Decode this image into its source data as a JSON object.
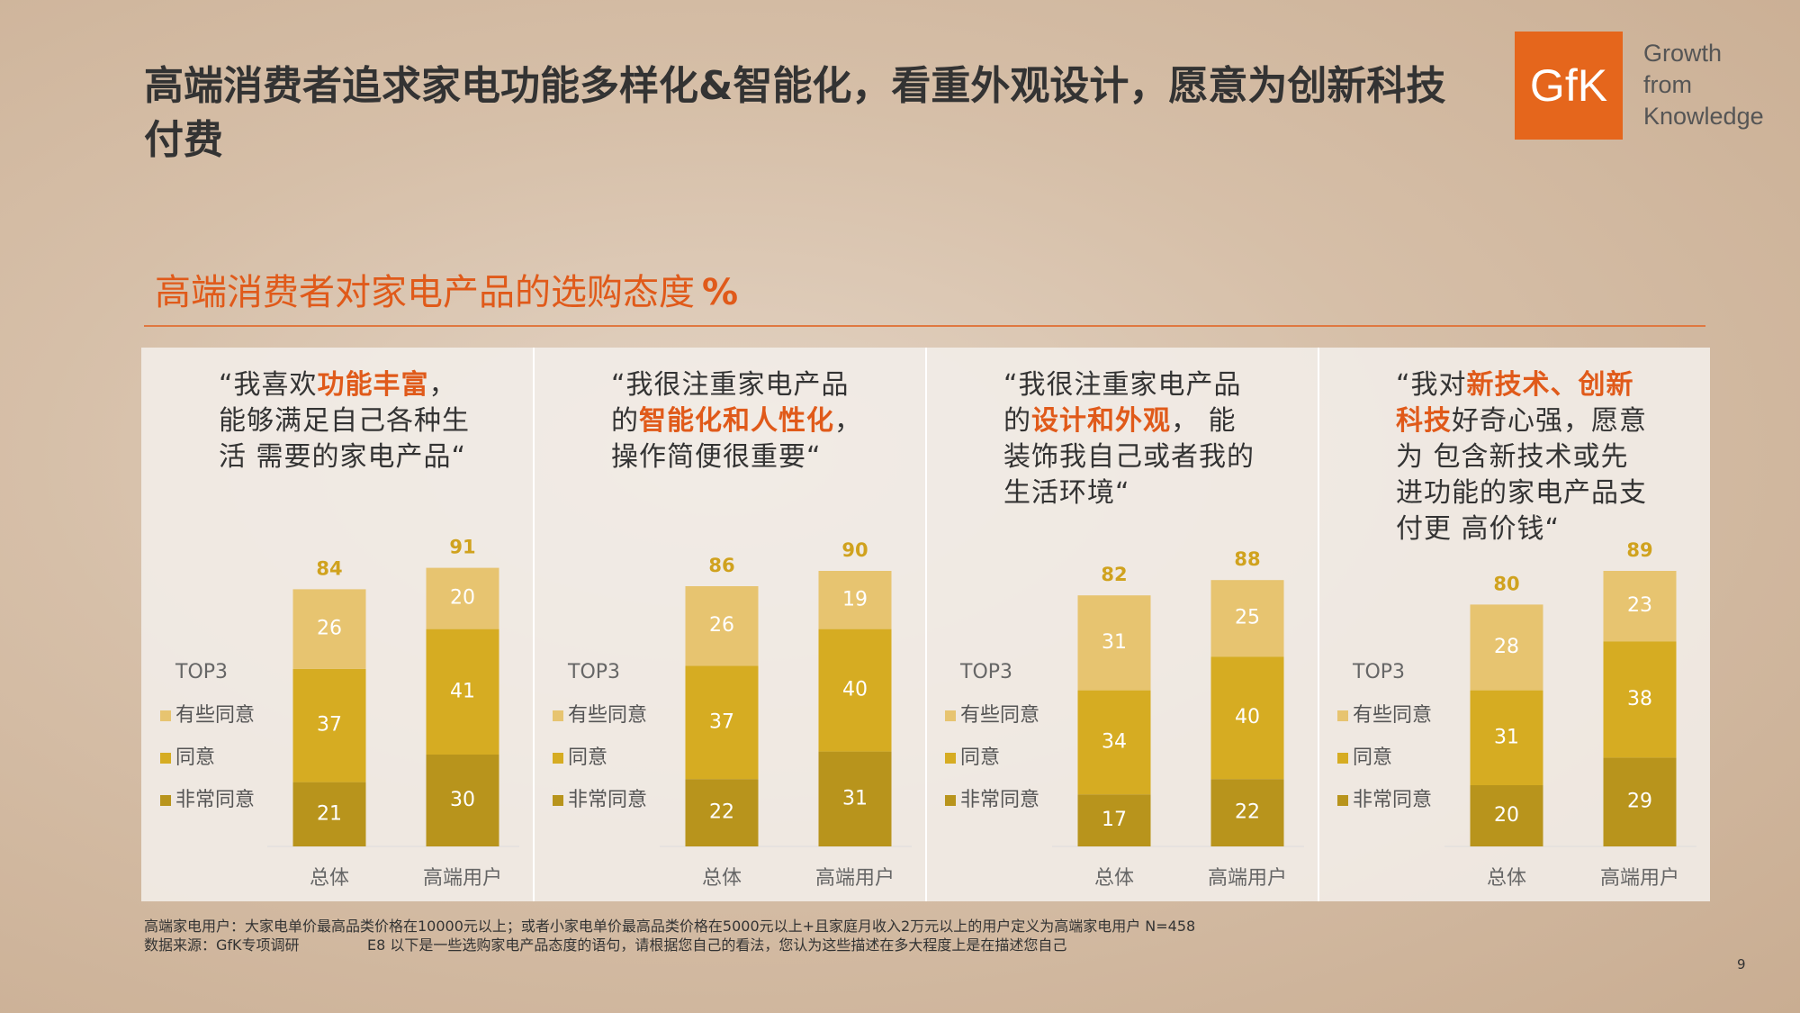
{
  "header": {
    "title": "高端消费者追求家电功能多样化&智能化，看重外观设计，愿意为创新科技付费",
    "logo": "GfK",
    "tagline": [
      "Growth",
      "from",
      "Knowledge"
    ],
    "subtitle": "高端消费者对家电产品的选购态度",
    "unit": "%"
  },
  "chart_data": [
    {
      "type": "stacked-bar",
      "quote": [
        {
          "text": "“我喜欢"
        },
        {
          "text": "功能丰富",
          "highlight": true
        },
        {
          "text": "，能够满足自己各种生活 需要的家电产品“"
        }
      ],
      "categories": [
        "总体",
        "高端用户"
      ],
      "ylim": [
        0,
        100
      ],
      "legend_title": "TOP3",
      "totals": [
        84,
        91
      ],
      "series": [
        {
          "name": "非常同意",
          "color": "#b8941c",
          "values": [
            21,
            30
          ]
        },
        {
          "name": "同意",
          "color": "#d6ac22",
          "values": [
            37,
            41
          ]
        },
        {
          "name": "有些同意",
          "color": "#e7c470",
          "values": [
            26,
            20
          ]
        }
      ]
    },
    {
      "type": "stacked-bar",
      "quote": [
        {
          "text": "“我很注重家电产品的"
        },
        {
          "text": "智能化和人性化",
          "highlight": true
        },
        {
          "text": "，操作简便很重要“"
        }
      ],
      "categories": [
        "总体",
        "高端用户"
      ],
      "ylim": [
        0,
        100
      ],
      "legend_title": "TOP3",
      "totals": [
        86,
        90
      ],
      "series": [
        {
          "name": "非常同意",
          "color": "#b8941c",
          "values": [
            22,
            31
          ]
        },
        {
          "name": "同意",
          "color": "#d6ac22",
          "values": [
            37,
            40
          ]
        },
        {
          "name": "有些同意",
          "color": "#e7c470",
          "values": [
            26,
            19
          ]
        }
      ]
    },
    {
      "type": "stacked-bar",
      "quote": [
        {
          "text": "“我很注重家电产品的"
        },
        {
          "text": "设计和外观",
          "highlight": true
        },
        {
          "text": "， 能装饰我自己或者我的生活环境“"
        }
      ],
      "categories": [
        "总体",
        "高端用户"
      ],
      "ylim": [
        0,
        100
      ],
      "legend_title": "TOP3",
      "totals": [
        82,
        88
      ],
      "series": [
        {
          "name": "非常同意",
          "color": "#b8941c",
          "values": [
            17,
            22
          ]
        },
        {
          "name": "同意",
          "color": "#d6ac22",
          "values": [
            34,
            40
          ]
        },
        {
          "name": "有些同意",
          "color": "#e7c470",
          "values": [
            31,
            25
          ]
        }
      ]
    },
    {
      "type": "stacked-bar",
      "quote": [
        {
          "text": "“我对"
        },
        {
          "text": "新技术、创新科技",
          "highlight": true
        },
        {
          "text": "好奇心强，愿意为 包含新技术或先进功能的家电产品支付更 高价钱“"
        }
      ],
      "categories": [
        "总体",
        "高端用户"
      ],
      "ylim": [
        0,
        100
      ],
      "legend_title": "TOP3",
      "totals": [
        80,
        89
      ],
      "series": [
        {
          "name": "非常同意",
          "color": "#b8941c",
          "values": [
            20,
            29
          ]
        },
        {
          "name": "同意",
          "color": "#d6ac22",
          "values": [
            31,
            38
          ]
        },
        {
          "name": "有些同意",
          "color": "#e7c470",
          "values": [
            28,
            23
          ]
        }
      ]
    }
  ],
  "footnotes": [
    "高端家电用户：大家电单价最高品类价格在10000元以上；或者小家电单价最高品类价格在5000元以上+且家庭月收入2万元以上的用户定义为高端家电用户 N=458",
    "数据来源：GfK专项调研",
    "E8 以下是一些选购家电产品态度的语句，请根据您自己的看法，您认为这些描述在多大程度上是在描述您自己"
  ],
  "page_number": "9"
}
